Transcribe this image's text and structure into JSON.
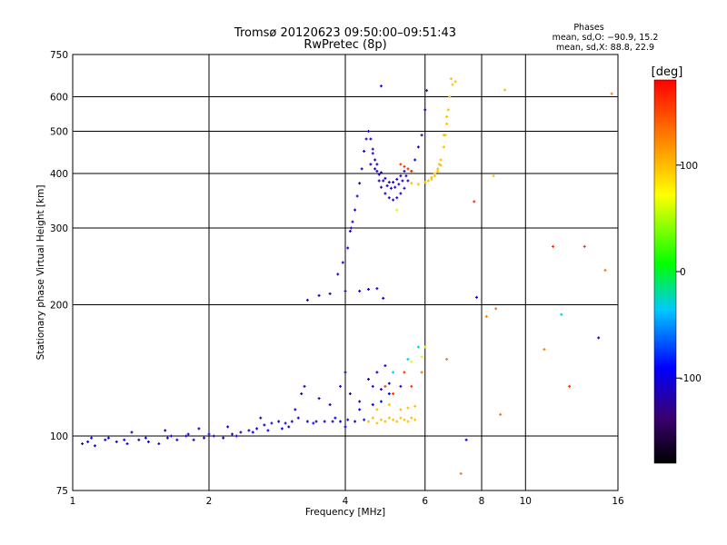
{
  "chart_data": {
    "type": "scatter",
    "title": "Tromsø 20120623 09:50:00–09:51:43",
    "subtitle": "RwPretec (8p)",
    "xlabel": "Frequency [MHz]",
    "ylabel": "Stationary phase Virtual Height [km]",
    "x_scale": "log",
    "y_scale": "log",
    "xlim": [
      1,
      16
    ],
    "ylim": [
      75,
      750
    ],
    "x_ticks": [
      1,
      2,
      4,
      6,
      8,
      10,
      16
    ],
    "y_ticks": [
      75,
      100,
      200,
      300,
      400,
      500,
      600,
      750
    ],
    "grid": true,
    "stats": {
      "heading": "Phases",
      "line_o": "mean, sd,O: −90.9, 15.2",
      "line_x": "mean, sd,X:  88.8, 22.9"
    },
    "colorbar": {
      "label": "[deg]",
      "range": [
        -180,
        180
      ],
      "ticks": [
        100,
        0,
        -100
      ]
    },
    "series": [
      {
        "phase": -110,
        "points": [
          [
            1.05,
            96
          ],
          [
            1.08,
            97
          ],
          [
            1.12,
            95
          ],
          [
            1.18,
            98
          ],
          [
            1.25,
            97
          ],
          [
            1.32,
            96
          ],
          [
            1.4,
            98
          ],
          [
            1.47,
            97
          ],
          [
            1.55,
            96
          ],
          [
            1.62,
            99
          ],
          [
            1.7,
            98
          ],
          [
            1.78,
            100
          ],
          [
            1.85,
            98
          ],
          [
            1.95,
            99
          ],
          [
            2.05,
            100
          ],
          [
            2.15,
            99
          ],
          [
            2.25,
            101
          ],
          [
            2.35,
            102
          ],
          [
            2.45,
            103
          ],
          [
            2.55,
            104
          ],
          [
            2.65,
            106
          ],
          [
            2.75,
            107
          ],
          [
            2.85,
            108
          ],
          [
            2.95,
            107
          ],
          [
            3.05,
            108
          ],
          [
            3.15,
            110
          ],
          [
            3.3,
            108
          ],
          [
            3.45,
            108
          ],
          [
            3.6,
            108
          ],
          [
            3.75,
            108
          ],
          [
            3.9,
            108
          ],
          [
            4.05,
            109
          ],
          [
            4.2,
            108
          ],
          [
            4.4,
            109
          ],
          [
            1.35,
            102
          ],
          [
            1.6,
            103
          ],
          [
            1.9,
            104
          ],
          [
            2.2,
            105
          ],
          [
            2.6,
            110
          ],
          [
            3.1,
            115
          ],
          [
            3.2,
            125
          ],
          [
            3.25,
            130
          ],
          [
            3.5,
            122
          ],
          [
            3.7,
            118
          ],
          [
            3.9,
            130
          ],
          [
            4.0,
            140
          ],
          [
            4.1,
            125
          ],
          [
            4.3,
            120
          ],
          [
            4.5,
            135
          ],
          [
            4.6,
            130
          ],
          [
            4.7,
            140
          ],
          [
            4.8,
            128
          ],
          [
            4.9,
            145
          ],
          [
            5.0,
            132
          ],
          [
            3.3,
            205
          ],
          [
            3.5,
            210
          ],
          [
            3.7,
            212
          ],
          [
            3.85,
            235
          ],
          [
            3.95,
            250
          ],
          [
            4.05,
            270
          ],
          [
            4.1,
            295
          ],
          [
            4.12,
            300
          ],
          [
            4.15,
            310
          ],
          [
            4.2,
            330
          ],
          [
            4.25,
            355
          ],
          [
            4.3,
            380
          ],
          [
            4.35,
            410
          ],
          [
            4.4,
            450
          ],
          [
            4.45,
            480
          ],
          [
            4.5,
            500
          ],
          [
            4.55,
            480
          ],
          [
            4.6,
            455
          ],
          [
            4.65,
            430
          ],
          [
            4.7,
            405
          ],
          [
            4.75,
            385
          ],
          [
            4.8,
            372
          ],
          [
            4.9,
            360
          ],
          [
            5.0,
            352
          ],
          [
            5.1,
            348
          ],
          [
            5.2,
            352
          ],
          [
            5.3,
            360
          ],
          [
            5.4,
            370
          ],
          [
            5.5,
            385
          ],
          [
            5.6,
            405
          ],
          [
            5.7,
            430
          ],
          [
            5.8,
            460
          ],
          [
            5.9,
            490
          ],
          [
            6.0,
            560
          ],
          [
            6.05,
            620
          ],
          [
            4.55,
            420
          ],
          [
            4.65,
            410
          ],
          [
            4.75,
            398
          ],
          [
            4.85,
            385
          ],
          [
            4.95,
            375
          ],
          [
            5.05,
            370
          ],
          [
            5.15,
            372
          ],
          [
            5.25,
            378
          ],
          [
            5.35,
            385
          ],
          [
            5.45,
            395
          ],
          [
            4.6,
            445
          ],
          [
            4.7,
            420
          ],
          [
            4.8,
            402
          ],
          [
            4.9,
            390
          ],
          [
            5.0,
            382
          ],
          [
            5.1,
            382
          ],
          [
            5.2,
            388
          ],
          [
            5.3,
            395
          ],
          [
            5.4,
            405
          ],
          [
            4.0,
            215
          ],
          [
            4.3,
            215
          ],
          [
            4.5,
            217
          ],
          [
            4.7,
            218
          ],
          [
            4.85,
            207
          ],
          [
            4.8,
            635
          ],
          [
            7.4,
            98
          ],
          [
            14.5,
            168
          ],
          [
            7.8,
            208
          ]
        ]
      },
      {
        "phase": -90,
        "points": [
          [
            1.1,
            99
          ],
          [
            1.2,
            99
          ],
          [
            1.3,
            98
          ],
          [
            1.45,
            99
          ],
          [
            1.65,
            100
          ],
          [
            1.8,
            101
          ],
          [
            2.0,
            101
          ],
          [
            2.3,
            100
          ],
          [
            2.5,
            102
          ],
          [
            2.7,
            103
          ],
          [
            2.9,
            104
          ],
          [
            3.0,
            105
          ],
          [
            3.4,
            107
          ],
          [
            3.8,
            110
          ],
          [
            4.0,
            105
          ],
          [
            4.3,
            115
          ],
          [
            4.6,
            118
          ],
          [
            4.8,
            120
          ],
          [
            5.0,
            125
          ],
          [
            5.3,
            130
          ]
        ]
      },
      {
        "phase": -30,
        "points": [
          [
            12.0,
            190
          ],
          [
            5.1,
            140
          ],
          [
            5.5,
            150
          ],
          [
            5.8,
            160
          ]
        ]
      },
      {
        "phase": 60,
        "points": [
          [
            5.2,
            330
          ],
          [
            5.6,
            148
          ],
          [
            5.9,
            152
          ],
          [
            6.0,
            160
          ]
        ]
      },
      {
        "phase": 100,
        "points": [
          [
            4.5,
            108
          ],
          [
            4.6,
            110
          ],
          [
            4.7,
            107
          ],
          [
            4.8,
            109
          ],
          [
            4.9,
            108
          ],
          [
            5.0,
            110
          ],
          [
            5.1,
            109
          ],
          [
            5.2,
            108
          ],
          [
            5.3,
            110
          ],
          [
            5.4,
            109
          ],
          [
            5.5,
            108
          ],
          [
            5.6,
            110
          ],
          [
            5.7,
            109
          ],
          [
            4.7,
            115
          ],
          [
            5.0,
            118
          ],
          [
            5.3,
            115
          ],
          [
            5.5,
            116
          ],
          [
            5.7,
            117
          ],
          [
            5.6,
            380
          ],
          [
            5.8,
            378
          ],
          [
            6.0,
            382
          ],
          [
            6.1,
            385
          ],
          [
            6.2,
            388
          ],
          [
            6.3,
            395
          ],
          [
            6.4,
            410
          ],
          [
            6.5,
            430
          ],
          [
            6.6,
            460
          ],
          [
            6.65,
            490
          ],
          [
            6.7,
            520
          ],
          [
            6.75,
            560
          ],
          [
            6.8,
            600
          ],
          [
            6.85,
            660
          ],
          [
            6.9,
            640
          ],
          [
            6.7,
            540
          ],
          [
            6.6,
            490
          ],
          [
            6.45,
            420
          ],
          [
            6.3,
            400
          ],
          [
            6.2,
            392
          ],
          [
            7.0,
            650
          ],
          [
            8.5,
            395
          ],
          [
            9.0,
            622
          ],
          [
            6.4,
            405
          ],
          [
            6.5,
            418
          ]
        ]
      },
      {
        "phase": 160,
        "points": [
          [
            5.3,
            420
          ],
          [
            5.4,
            415
          ],
          [
            5.5,
            410
          ],
          [
            5.6,
            405
          ],
          [
            4.9,
            130
          ],
          [
            5.1,
            125
          ],
          [
            5.4,
            140
          ],
          [
            5.6,
            130
          ],
          [
            7.7,
            345
          ],
          [
            11.5,
            272
          ],
          [
            13.5,
            272
          ],
          [
            12.5,
            130
          ]
        ]
      },
      {
        "phase": 130,
        "points": [
          [
            8.2,
            188
          ],
          [
            8.6,
            196
          ],
          [
            7.2,
            82
          ],
          [
            8.8,
            112
          ],
          [
            11.0,
            158
          ],
          [
            15.0,
            240
          ],
          [
            15.5,
            610
          ],
          [
            6.7,
            150
          ],
          [
            5.9,
            140
          ]
        ]
      }
    ]
  }
}
